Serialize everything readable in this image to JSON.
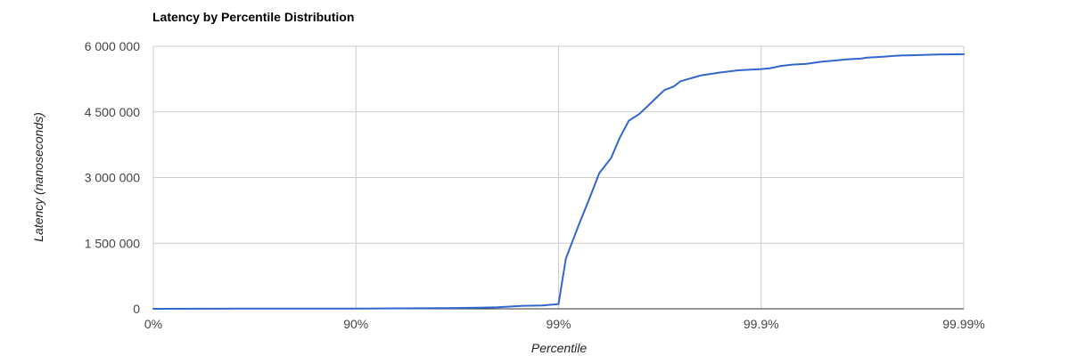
{
  "chart_data": {
    "type": "line",
    "title": "Latency by Percentile Distribution",
    "xlabel": "Percentile",
    "ylabel": "Latency (nanoseconds)",
    "x_scale": "log-inverse-percentile",
    "x_ticks": [
      "0%",
      "90%",
      "99%",
      "99.9%",
      "99.99%"
    ],
    "xlim": [
      0,
      99.99
    ],
    "ylim": [
      0,
      6000000
    ],
    "y_ticks": [
      0,
      1500000,
      3000000,
      4500000,
      6000000
    ],
    "y_tick_labels": [
      "0",
      "1 500 000",
      "3 000 000",
      "4 500 000",
      "6 000 000"
    ],
    "grid": true,
    "legend": "none",
    "colors": {
      "series": "#3366cc",
      "grid": "#cccccc",
      "baseline": "#333333"
    },
    "series": [
      {
        "x": [
          0,
          40,
          60,
          75,
          84.2,
          90,
          93.7,
          96.0,
          97.5,
          98.0,
          98.5,
          98.8,
          99.0,
          99.08,
          99.21,
          99.3,
          99.37,
          99.45,
          99.5,
          99.55,
          99.6,
          99.64,
          99.68,
          99.7,
          99.73,
          99.75,
          99.77,
          99.79,
          99.8,
          99.84,
          99.87,
          99.9,
          99.91,
          99.92,
          99.93,
          99.94,
          99.95,
          99.958,
          99.962,
          99.968,
          99.97,
          99.975,
          99.978,
          99.98,
          99.982,
          99.984,
          99.9865,
          99.99
        ],
        "y": [
          0,
          2000,
          4000,
          4500,
          5000,
          5000,
          10000,
          15000,
          25000,
          35000,
          70000,
          75000,
          110000,
          1150000,
          1950000,
          2550000,
          3100000,
          3450000,
          3900000,
          4300000,
          4450000,
          4650000,
          4880000,
          5000000,
          5080000,
          5200000,
          5250000,
          5300000,
          5330000,
          5400000,
          5450000,
          5480000,
          5500000,
          5550000,
          5580000,
          5600000,
          5650000,
          5680000,
          5700000,
          5720000,
          5740000,
          5760000,
          5780000,
          5790000,
          5795000,
          5800000,
          5810000,
          5820000
        ]
      }
    ]
  }
}
